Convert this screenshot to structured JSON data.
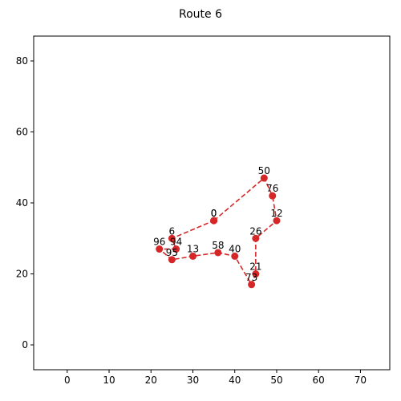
{
  "chart_data": {
    "type": "line",
    "title": "Route 6",
    "xlabel": "",
    "ylabel": "",
    "xlim": [
      -8,
      77
    ],
    "ylim": [
      -7,
      87
    ],
    "xticks": [
      0,
      10,
      20,
      30,
      40,
      50,
      60,
      70
    ],
    "yticks": [
      0,
      20,
      40,
      60,
      80
    ],
    "grid": false,
    "series_color": "#d62728",
    "line_style": "dashed",
    "route": [
      {
        "label": "0",
        "x": 35,
        "y": 35
      },
      {
        "label": "50",
        "x": 47,
        "y": 47
      },
      {
        "label": "76",
        "x": 49,
        "y": 42
      },
      {
        "label": "12",
        "x": 50,
        "y": 35
      },
      {
        "label": "26",
        "x": 45,
        "y": 30
      },
      {
        "label": "21",
        "x": 45,
        "y": 20
      },
      {
        "label": "73",
        "x": 44,
        "y": 17
      },
      {
        "label": "40",
        "x": 40,
        "y": 25
      },
      {
        "label": "58",
        "x": 36,
        "y": 26
      },
      {
        "label": "13",
        "x": 30,
        "y": 25
      },
      {
        "label": "95",
        "x": 25,
        "y": 24
      },
      {
        "label": "96",
        "x": 22,
        "y": 27
      },
      {
        "label": "94",
        "x": 26,
        "y": 27
      },
      {
        "label": "6",
        "x": 25,
        "y": 30
      },
      {
        "label": "0",
        "x": 35,
        "y": 35
      }
    ]
  }
}
